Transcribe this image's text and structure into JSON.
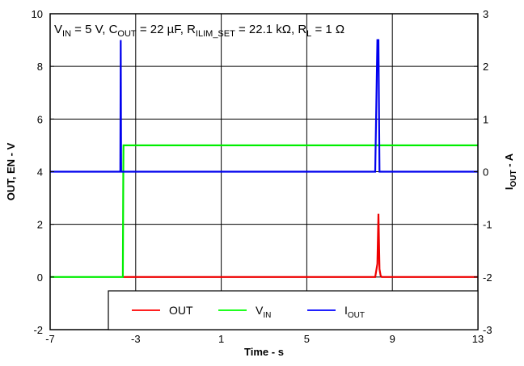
{
  "chart_data": {
    "type": "line",
    "annotation": {
      "parts": [
        {
          "t": "V",
          "sub": false
        },
        {
          "t": "IN",
          "sub": true
        },
        {
          "t": " = 5 V, C",
          "sub": false
        },
        {
          "t": "OUT",
          "sub": true
        },
        {
          "t": " = 22 µF, R",
          "sub": false
        },
        {
          "t": "ILIM_SET",
          "sub": true
        },
        {
          "t": " = 22.1 kΩ, R",
          "sub": false
        },
        {
          "t": "L",
          "sub": true
        },
        {
          "t": " = 1 Ω",
          "sub": false
        }
      ]
    },
    "xlabel": "Time - s",
    "ylabel_left": "OUT, EN - V",
    "ylabel_right": {
      "main": "I",
      "sub": "OUT",
      "suffix": " - A"
    },
    "xlim": [
      -7,
      13
    ],
    "ylim_left": [
      -2,
      10
    ],
    "ylim_right": [
      -3,
      3
    ],
    "x_ticks": [
      "-7",
      "-3",
      "1",
      "5",
      "9",
      "13"
    ],
    "y_ticks_left": [
      "-2",
      "0",
      "2",
      "4",
      "6",
      "8",
      "10"
    ],
    "y_ticks_right": [
      "-3",
      "-2",
      "-1",
      "0",
      "1",
      "2",
      "3"
    ],
    "grid": true,
    "legend": {
      "placement": "bottom-center",
      "items": [
        {
          "label": "OUT",
          "sub": "",
          "color": "#ff0000"
        },
        {
          "label": "V",
          "sub": "IN",
          "color": "#00ff00"
        },
        {
          "label": "I",
          "sub": "OUT",
          "color": "#0000ff"
        }
      ]
    },
    "series": [
      {
        "name": "OUT",
        "axis": "left",
        "color": "#ee0000",
        "x": [
          -3.6,
          8.2,
          8.3,
          8.35,
          8.4,
          8.45,
          8.5,
          13
        ],
        "y": [
          0,
          0,
          0.5,
          2.4,
          0.3,
          0.05,
          0,
          0
        ]
      },
      {
        "name": "V_IN",
        "axis": "left",
        "color": "#00ee00",
        "x": [
          -7,
          -3.6,
          -3.58,
          -3.57,
          13
        ],
        "y": [
          0,
          0,
          4.1,
          5,
          5
        ]
      },
      {
        "name": "I_OUT",
        "axis": "right",
        "color": "#0000ee",
        "x": [
          -7,
          -3.72,
          -3.7,
          -3.68,
          8.2,
          8.3,
          8.35,
          8.4,
          13
        ],
        "y": [
          0,
          0,
          2.5,
          0,
          0,
          2.5,
          2.5,
          0,
          0
        ]
      }
    ]
  }
}
